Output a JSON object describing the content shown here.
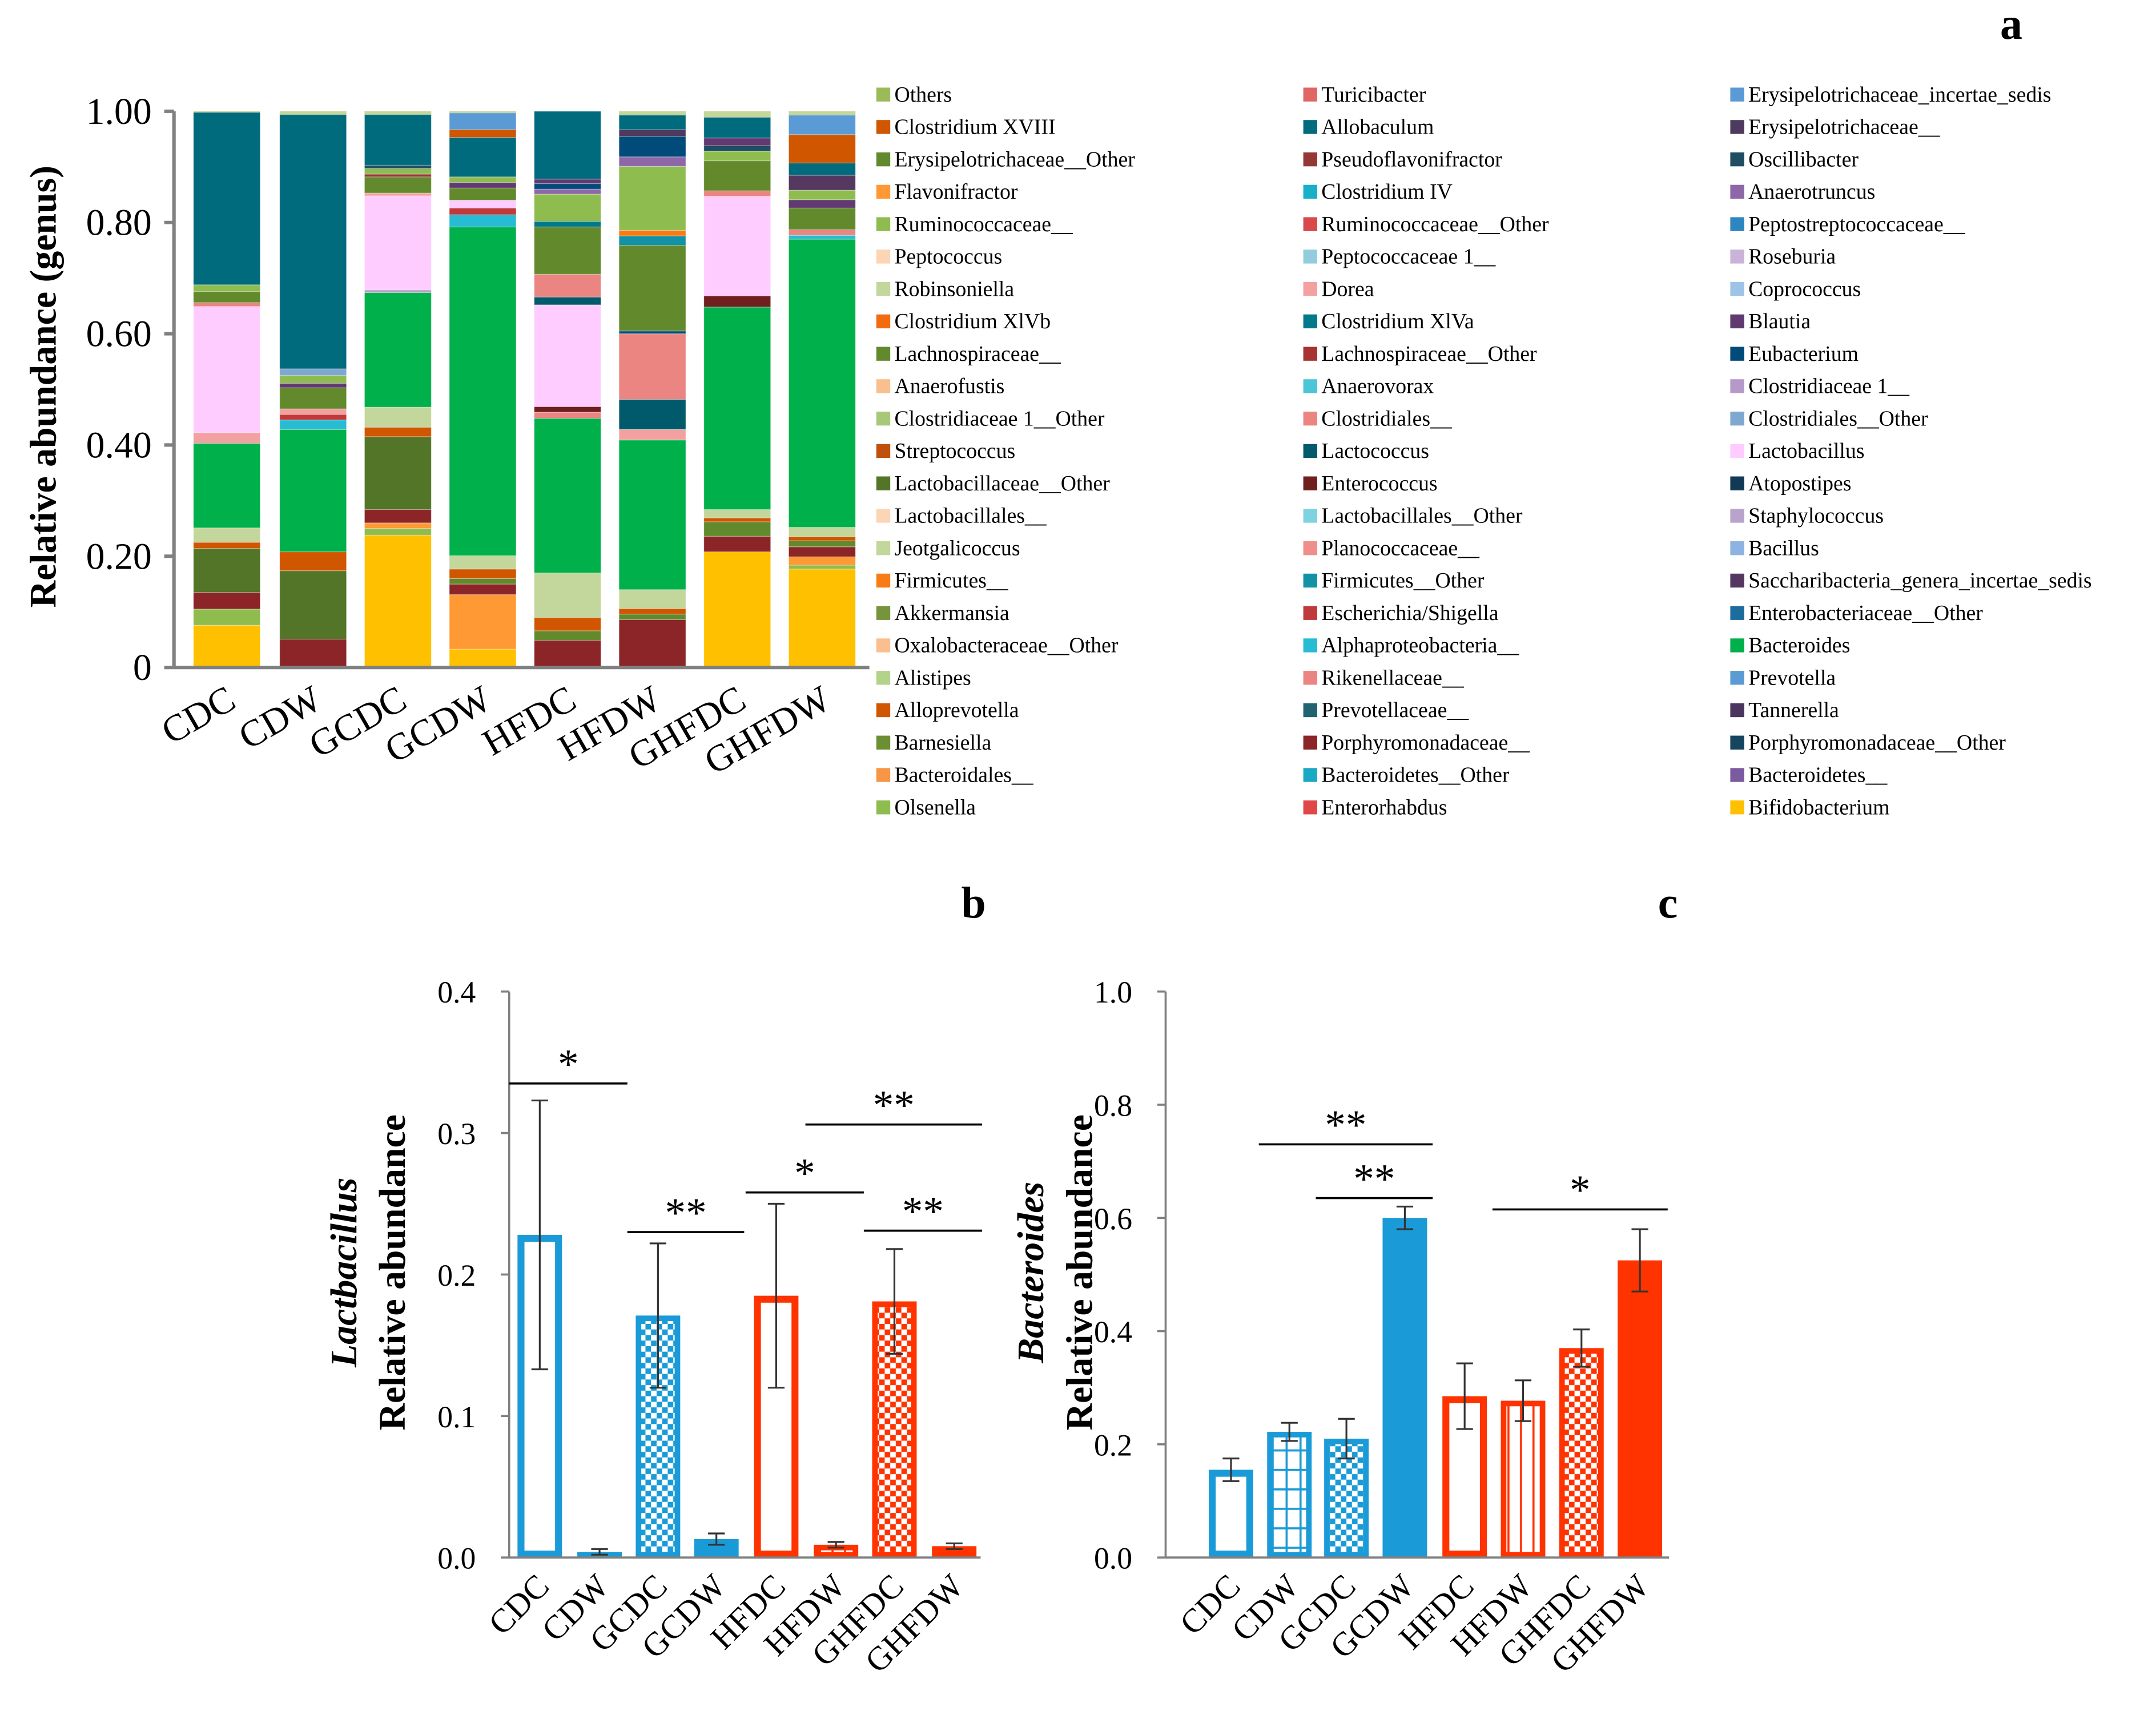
{
  "chart_data": [
    {
      "panel": "a",
      "type": "bar",
      "stacked": true,
      "ylabel": "Relative abundance (genus)",
      "ylim": [
        0,
        1
      ],
      "yticks": [
        "0",
        "0.20",
        "0.40",
        "0.60",
        "0.80",
        "1.00"
      ],
      "categories": [
        "CDC",
        "CDW",
        "GCDC",
        "GCDW",
        "HFDC",
        "HFDW",
        "GHFDC",
        "GHFDW"
      ],
      "legend": [
        [
          "Others",
          "#9bbb59"
        ],
        [
          "Clostridium XVIII",
          "#d05600"
        ],
        [
          "Erysipelotrichaceae__Other",
          "#62892c"
        ],
        [
          "Flavonifractor",
          "#ff9933"
        ],
        [
          "Ruminococcaceae__",
          "#8fbc4f"
        ],
        [
          "Peptococcus",
          "#fcd5b5"
        ],
        [
          "Robinsoniella",
          "#c3d69b"
        ],
        [
          "Clostridium XlVb",
          "#f26b0f"
        ],
        [
          "Lachnospiraceae__",
          "#62892c"
        ],
        [
          "Anaerofustis",
          "#fabf8f"
        ],
        [
          "Clostridiaceae 1__Other",
          "#a6c878"
        ],
        [
          "Streptococcus",
          "#c0500d"
        ],
        [
          "Lactobacillaceae__Other",
          "#527527"
        ],
        [
          "Lactobacillales__",
          "#fcd5b5"
        ],
        [
          "Jeotgalicoccus",
          "#c3d69b"
        ],
        [
          "Firmicutes__",
          "#f97b16"
        ],
        [
          "Akkermansia",
          "#77933c"
        ],
        [
          "Oxalobacteraceae__Other",
          "#fabf8f"
        ],
        [
          "Alistipes",
          "#b3d38a"
        ],
        [
          "Alloprevotella",
          "#d05600"
        ],
        [
          "Barnesiella",
          "#6c8f33"
        ],
        [
          "Bacteroidales__",
          "#f79646"
        ],
        [
          "Olsenella",
          "#8fbc4f"
        ],
        [
          "Turicibacter",
          "#e06666"
        ],
        [
          "Allobaculum",
          "#006b7d"
        ],
        [
          "Pseudoflavonifractor",
          "#953735"
        ],
        [
          "Clostridium IV",
          "#17b0c8"
        ],
        [
          "Ruminococcaceae__Other",
          "#d9484b"
        ],
        [
          "Peptococcaceae 1__",
          "#93cddd"
        ],
        [
          "Dorea",
          "#f2a1a0"
        ],
        [
          "Clostridium XlVa",
          "#00798c"
        ],
        [
          "Lachnospiraceae__Other",
          "#a6332f"
        ],
        [
          "Anaerovorax",
          "#4bc6d6"
        ],
        [
          "Clostridiales__",
          "#eb8582"
        ],
        [
          "Lactococcus",
          "#005a6b"
        ],
        [
          "Enterococcus",
          "#701f1f"
        ],
        [
          "Lactobacillales__Other",
          "#7fd3e0"
        ],
        [
          "Planococcaceae__",
          "#f08e8c"
        ],
        [
          "Firmicutes__Other",
          "#1391a5"
        ],
        [
          "Escherichia/Shigella",
          "#c0393b"
        ],
        [
          "Alphaproteobacteria__",
          "#27bcd3"
        ],
        [
          "Rikenellaceae__",
          "#eb8582"
        ],
        [
          "Prevotellaceae__",
          "#1f6470"
        ],
        [
          "Porphyromonadaceae__",
          "#8b2527"
        ],
        [
          "Bacteroidetes__Other",
          "#1aa9c4"
        ],
        [
          "Enterorhabdus",
          "#e04848"
        ],
        [
          "Erysipelotrichaceae_incertae_sedis",
          "#5b9bd5"
        ],
        [
          "Erysipelotrichaceae__",
          "#4f3a5f"
        ],
        [
          "Oscillibacter",
          "#1f4e62"
        ],
        [
          "Anaerotruncus",
          "#8e67a8"
        ],
        [
          "Peptostreptococcaceae__",
          "#2e86c1"
        ],
        [
          "Roseburia",
          "#c9b3d8"
        ],
        [
          "Coprococcus",
          "#9dc3e6"
        ],
        [
          "Blautia",
          "#603a70"
        ],
        [
          "Eubacterium",
          "#004b7a"
        ],
        [
          "Clostridiaceae 1__",
          "#b499c9"
        ],
        [
          "Clostridiales__Other",
          "#7fa8d0"
        ],
        [
          "Lactobacillus",
          "#ffccff"
        ],
        [
          "Atopostipes",
          "#123a56"
        ],
        [
          "Staphylococcus",
          "#b7a3cc"
        ],
        [
          "Bacillus",
          "#8db3e2"
        ],
        [
          "Saccharibacteria_genera_incertae_sedis",
          "#55385f"
        ],
        [
          "Enterobacteriaceae__Other",
          "#1d6c9e"
        ],
        [
          "Bacteroides",
          "#00b04a"
        ],
        [
          "Prevotella",
          "#5b9bd5"
        ],
        [
          "Tannerella",
          "#4a3660"
        ],
        [
          "Porphyromonadaceae__Other",
          "#164560"
        ],
        [
          "Bacteroidetes__",
          "#7c5aa0"
        ],
        [
          "Bifidobacterium",
          "#ffc000"
        ]
      ],
      "stacks": [
        [
          [
            "Bifidobacterium",
            0.076
          ],
          [
            "Ruminococcaceae__",
            0.029
          ],
          [
            "Porphyromonadaceae__",
            0.03
          ],
          [
            "Lactobacillaceae__Other",
            0.079
          ],
          [
            "Alloprevotella",
            0.011
          ],
          [
            "Robinsoniella",
            0.026
          ],
          [
            "Bacteroides",
            0.152
          ],
          [
            "Dorea",
            0.019
          ],
          [
            "Lactobacillus",
            0.227
          ],
          [
            "Rikenellaceae__",
            0.007
          ],
          [
            "Lachnospiraceae__",
            0.02
          ],
          [
            "Ruminococcaceae__",
            0.012
          ],
          [
            "Allobaculum",
            0.31
          ]
        ],
        [
          [
            "Porphyromonadaceae__",
            0.051
          ],
          [
            "Lactobacillaceae__Other",
            0.123
          ],
          [
            "Alloprevotella",
            0.034
          ],
          [
            "Bacteroides",
            0.22
          ],
          [
            "Alphaproteobacteria__",
            0.017
          ],
          [
            "Escherichia/Shigella",
            0.01
          ],
          [
            "Dorea",
            0.01
          ],
          [
            "Lachnospiraceae__",
            0.038
          ],
          [
            "Blautia",
            0.008
          ],
          [
            "Ruminococcaceae__",
            0.014
          ],
          [
            "Clostridiales__Other",
            0.012
          ],
          [
            "Allobaculum",
            0.457
          ]
        ],
        [
          [
            "Bifidobacterium",
            0.238
          ],
          [
            "Ruminococcaceae__",
            0.012
          ],
          [
            "Flavonifractor",
            0.01
          ],
          [
            "Porphyromonadaceae__",
            0.024
          ],
          [
            "Lactobacillaceae__Other",
            0.131
          ],
          [
            "Alloprevotella",
            0.017
          ],
          [
            "Robinsoniella",
            0.036
          ],
          [
            "Bacteroides",
            0.206
          ],
          [
            "Staphylococcus",
            0.005
          ],
          [
            "Lactobacillus",
            0.169
          ],
          [
            "Dorea",
            0.005
          ],
          [
            "Lachnospiraceae__",
            0.029
          ],
          [
            "Pseudoflavonifractor",
            0.005
          ],
          [
            "Ruminococcaceae__",
            0.01
          ],
          [
            "Oscillibacter",
            0.006
          ],
          [
            "Allobaculum",
            0.091
          ]
        ],
        [
          [
            "Bifidobacterium",
            0.033
          ],
          [
            "Flavonifractor",
            0.098
          ],
          [
            "Porphyromonadaceae__",
            0.019
          ],
          [
            "Lachnospiraceae__",
            0.01
          ],
          [
            "Alloprevotella",
            0.017
          ],
          [
            "Robinsoniella",
            0.024
          ],
          [
            "Bacteroides",
            0.591
          ],
          [
            "Alphaproteobacteria__",
            0.022
          ],
          [
            "Escherichia/Shigella",
            0.012
          ],
          [
            "Lactobacillus",
            0.014
          ],
          [
            "Lachnospiraceae__",
            0.022
          ],
          [
            "Blautia",
            0.01
          ],
          [
            "Ruminococcaceae__",
            0.01
          ],
          [
            "Allobaculum",
            0.071
          ],
          [
            "Clostridium XVIII",
            0.014
          ],
          [
            "Prevotella",
            0.03
          ]
        ],
        [
          [
            "Porphyromonadaceae__",
            0.049
          ],
          [
            "Lachnospiraceae__",
            0.017
          ],
          [
            "Alloprevotella",
            0.024
          ],
          [
            "Robinsoniella",
            0.08
          ],
          [
            "Bacteroides",
            0.278
          ],
          [
            "Clostridiales__",
            0.011
          ],
          [
            "Enterococcus",
            0.01
          ],
          [
            "Lactobacillus",
            0.183
          ],
          [
            "Lactococcus",
            0.014
          ],
          [
            "Clostridiales__",
            0.041
          ],
          [
            "Lachnospiraceae__",
            0.085
          ],
          [
            "Clostridium XlVa",
            0.01
          ],
          [
            "Ruminococcaceae__",
            0.049
          ],
          [
            "Anaerotruncus",
            0.009
          ],
          [
            "Eubacterium",
            0.01
          ],
          [
            "Blautia",
            0.008
          ],
          [
            "Allobaculum",
            0.122
          ]
        ],
        [
          [
            "Porphyromonadaceae__",
            0.086
          ],
          [
            "Lachnospiraceae__",
            0.01
          ],
          [
            "Alloprevotella",
            0.01
          ],
          [
            "Robinsoniella",
            0.034
          ],
          [
            "Bacteroides",
            0.269
          ],
          [
            "Dorea",
            0.019
          ],
          [
            "Lactococcus",
            0.054
          ],
          [
            "Rikenellaceae__",
            0.118
          ],
          [
            "Eubacterium",
            0.005
          ],
          [
            "Lachnospiraceae__",
            0.154
          ],
          [
            "Firmicutes__Other",
            0.017
          ],
          [
            "Firmicutes__",
            0.01
          ],
          [
            "Ruminococcaceae__",
            0.115
          ],
          [
            "Anaerotruncus",
            0.017
          ],
          [
            "Eubacterium",
            0.037
          ],
          [
            "Erysipelotrichaceae__",
            0.012
          ],
          [
            "Allobaculum",
            0.026
          ]
        ],
        [
          [
            "Bifidobacterium",
            0.208
          ],
          [
            "Porphyromonadaceae__",
            0.028
          ],
          [
            "Lachnospiraceae__",
            0.026
          ],
          [
            "Alloprevotella",
            0.007
          ],
          [
            "Robinsoniella",
            0.015
          ],
          [
            "Bacteroides",
            0.364
          ],
          [
            "Enterococcus",
            0.02
          ],
          [
            "Lactobacillus",
            0.179
          ],
          [
            "Rikenellaceae__",
            0.01
          ],
          [
            "Lachnospiraceae__",
            0.054
          ],
          [
            "Ruminococcaceae__",
            0.017
          ],
          [
            "Oscillibacter",
            0.01
          ],
          [
            "Blautia",
            0.014
          ],
          [
            "Allobaculum",
            0.037
          ]
        ],
        [
          [
            "Bifidobacterium",
            0.177
          ],
          [
            "Ruminococcaceae__",
            0.007
          ],
          [
            "Flavonifractor",
            0.015
          ],
          [
            "Porphyromonadaceae__",
            0.018
          ],
          [
            "Lachnospiraceae__",
            0.011
          ],
          [
            "Alloprevotella",
            0.007
          ],
          [
            "Robinsoniella",
            0.017
          ],
          [
            "Bacteroides",
            0.518
          ],
          [
            "Alphaproteobacteria__",
            0.007
          ],
          [
            "Rikenellaceae__",
            0.01
          ],
          [
            "Lachnospiraceae__",
            0.039
          ],
          [
            "Blautia",
            0.015
          ],
          [
            "Ruminococcaceae__",
            0.017
          ],
          [
            "Saccharibacteria_genera_incertae_sedis",
            0.027
          ],
          [
            "Allobaculum",
            0.022
          ],
          [
            "Clostridium XVIII",
            0.051
          ],
          [
            "Prevotella",
            0.035
          ]
        ]
      ]
    },
    {
      "panel": "b",
      "type": "bar",
      "ylabel_italic": "Lactbacillus",
      "ylabel": "Relative abundance",
      "ylim": [
        0,
        0.4
      ],
      "yticks": [
        "0.0",
        "0.1",
        "0.2",
        "0.3",
        "0.4"
      ],
      "categories": [
        "CDC",
        "CDW",
        "GCDC",
        "GCDW",
        "HFDC",
        "HFDW",
        "GHFDC",
        "GHFDW"
      ],
      "values": [
        0.228,
        0.004,
        0.171,
        0.013,
        0.185,
        0.009,
        0.181,
        0.008
      ],
      "errors": [
        0.095,
        0.002,
        0.051,
        0.004,
        0.065,
        0.002,
        0.037,
        0.002
      ],
      "significance": [
        {
          "from": 0,
          "to": 1,
          "level": 0.335,
          "label": "*"
        },
        {
          "from": 2,
          "to": 3,
          "level": 0.23,
          "label": "**"
        },
        {
          "from": 4,
          "to": 5,
          "level": 0.258,
          "label": "*"
        },
        {
          "from": 5,
          "to": 7,
          "level": 0.306,
          "label": "**"
        },
        {
          "from": 6,
          "to": 7,
          "level": 0.231,
          "label": "**"
        }
      ]
    },
    {
      "panel": "c",
      "type": "bar",
      "ylabel_italic": "Bacteroides",
      "ylabel": "Relative abundance",
      "ylim": [
        0,
        1
      ],
      "yticks": [
        "0.0",
        "0.2",
        "0.4",
        "0.6",
        "0.8",
        "1.0"
      ],
      "categories": [
        "CDC",
        "CDW",
        "GCDC",
        "GCDW",
        "HFDC",
        "HFDW",
        "GHFDC",
        "GHFDW"
      ],
      "values": [
        0.155,
        0.222,
        0.21,
        0.6,
        0.285,
        0.277,
        0.37,
        0.525
      ],
      "errors": [
        0.02,
        0.016,
        0.035,
        0.02,
        0.058,
        0.036,
        0.033,
        0.055
      ],
      "significance": [
        {
          "from": 1,
          "to": 3,
          "level": 0.73,
          "label": "**"
        },
        {
          "from": 2,
          "to": 3,
          "level": 0.635,
          "label": "**"
        },
        {
          "from": 5,
          "to": 7,
          "level": 0.615,
          "label": "*"
        }
      ]
    }
  ],
  "panel_labels": [
    "a",
    "b",
    "c"
  ],
  "colors": {
    "control": "#1a9bd7",
    "hfd": "#ff3300",
    "axis": "#808080"
  },
  "fill_styles": [
    "hollow",
    "grid",
    "checker",
    "solid",
    "hollow",
    "vlines",
    "checker",
    "solid"
  ]
}
